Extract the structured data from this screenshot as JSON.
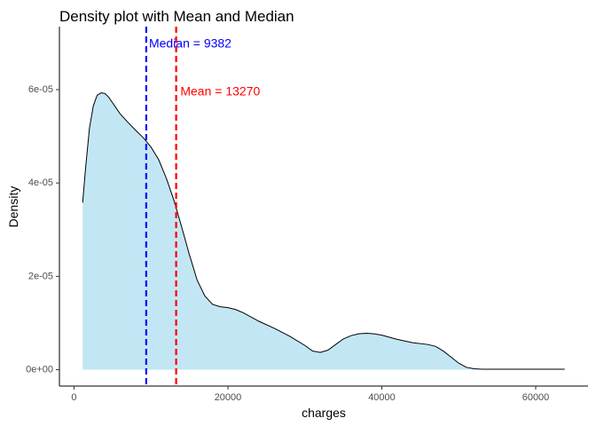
{
  "chart_data": {
    "type": "area",
    "title": "Density plot with Mean and Median",
    "xlabel": "charges",
    "ylabel": "Density",
    "xlim": [
      -1900,
      66800
    ],
    "ylim": [
      -3.5e-06,
      7.35e-05
    ],
    "x_ticks": [
      {
        "value": 0,
        "label": "0"
      },
      {
        "value": 20000,
        "label": "20000"
      },
      {
        "value": 40000,
        "label": "40000"
      },
      {
        "value": 60000,
        "label": "60000"
      }
    ],
    "y_ticks": [
      {
        "value": 0,
        "label": "0e+00"
      },
      {
        "value": 2e-05,
        "label": "2e-05"
      },
      {
        "value": 4e-05,
        "label": "4e-05"
      },
      {
        "value": 6e-05,
        "label": "6e-05"
      }
    ],
    "grid": false,
    "fill_color": "#c3e6f5",
    "line_color": "#000000",
    "series": [
      {
        "x": [
          1122,
          1500,
          2000,
          2500,
          3000,
          3500,
          4000,
          4500,
          5000,
          5500,
          6000,
          7000,
          8000,
          9000,
          10000,
          11000,
          12000,
          13000,
          14000,
          15000,
          16000,
          17000,
          18000,
          19000,
          20000,
          21000,
          22000,
          24000,
          26000,
          28000,
          30000,
          31000,
          32000,
          33000,
          34000,
          35000,
          36000,
          37000,
          38000,
          39000,
          40000,
          42000,
          44000,
          46000,
          47000,
          48000,
          49000,
          50000,
          51000,
          52000,
          53000,
          54000,
          55000,
          56000,
          58000,
          60000,
          62000,
          63770
        ],
        "y": [
          3.58e-05,
          4.32e-05,
          5.17e-05,
          5.65e-05,
          5.88e-05,
          5.93e-05,
          5.92e-05,
          5.84e-05,
          5.72e-05,
          5.6e-05,
          5.48e-05,
          5.3e-05,
          5.13e-05,
          4.97e-05,
          4.77e-05,
          4.5e-05,
          4.1e-05,
          3.62e-05,
          3.05e-05,
          2.46e-05,
          1.92e-05,
          1.58e-05,
          1.4e-05,
          1.35e-05,
          1.33e-05,
          1.29e-05,
          1.22e-05,
          1.04e-05,
          8.9e-06,
          7.2e-06,
          5.2e-06,
          4e-06,
          3.7e-06,
          4.2e-06,
          5.4e-06,
          6.6e-06,
          7.3e-06,
          7.7e-06,
          7.8e-06,
          7.7e-06,
          7.4e-06,
          6.5e-06,
          5.8e-06,
          5.4e-06,
          5e-06,
          4e-06,
          2.7e-06,
          1.4e-06,
          5e-07,
          2e-07,
          1e-07,
          1e-07,
          1e-07,
          1e-07,
          1e-07,
          1e-07,
          1e-07,
          1e-07
        ]
      }
    ],
    "vlines": [
      {
        "x": 9382,
        "label": "Median = 9382",
        "color": "#0000ff",
        "label_x": 15100,
        "label_y": 6.97e-05
      },
      {
        "x": 13270,
        "label": "Mean = 13270",
        "color": "#ff0000",
        "label_x": 19000,
        "label_y": 5.95e-05
      }
    ]
  }
}
